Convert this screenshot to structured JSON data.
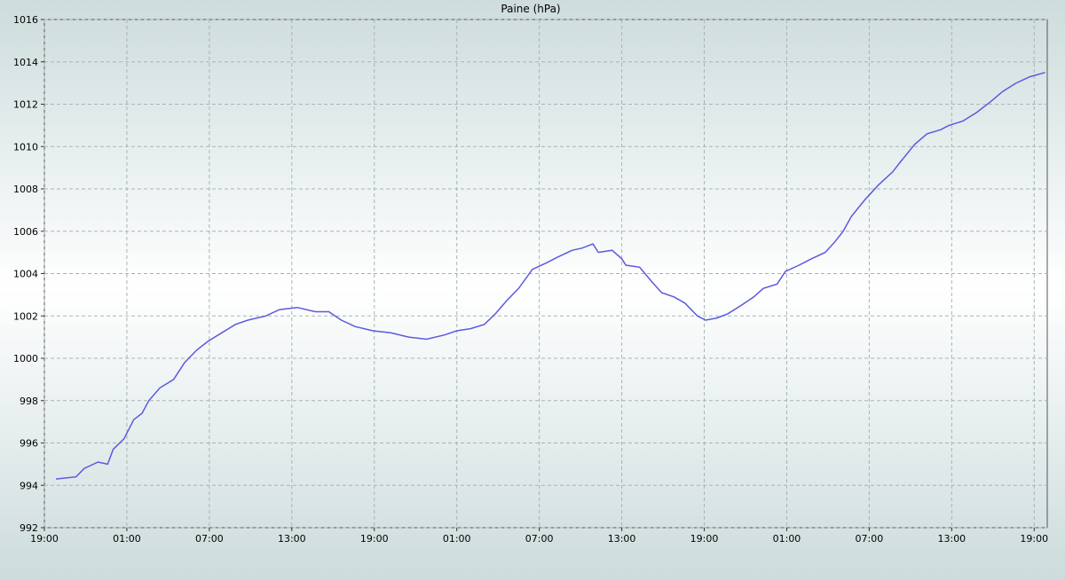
{
  "chart_data": {
    "type": "line",
    "title": "Paine (hPa)",
    "x": [
      0.84,
      2.3,
      2.9,
      3.9,
      4.6,
      5.0,
      5.8,
      6.5,
      7.1,
      7.6,
      8.4,
      9.4,
      10.2,
      11.1,
      11.9,
      12.9,
      13.9,
      14.8,
      16.1,
      17.1,
      18.4,
      19.7,
      20.7,
      21.6,
      22.6,
      23.9,
      25.2,
      26.5,
      27.8,
      29.1,
      30.0,
      31.0,
      32.0,
      32.8,
      33.6,
      34.5,
      35.5,
      36.5,
      37.4,
      38.4,
      39.1,
      39.9,
      40.3,
      41.3,
      42.0,
      42.3,
      43.3,
      44.2,
      44.9,
      45.8,
      46.6,
      47.5,
      48.1,
      48.9,
      49.7,
      50.7,
      51.6,
      52.3,
      53.3,
      53.9,
      54.9,
      55.8,
      56.8,
      57.5,
      58.1,
      58.7,
      59.7,
      60.7,
      61.7,
      62.3,
      63.3,
      64.2,
      65.2,
      65.8,
      66.8,
      67.8,
      68.8,
      69.7,
      70.7,
      71.7,
      72.8
    ],
    "series": [
      {
        "color": "#5a5ade",
        "values": [
          994.3,
          994.4,
          994.8,
          995.1,
          995.0,
          995.7,
          996.2,
          997.1,
          997.4,
          998.0,
          998.6,
          999.0,
          999.8,
          1000.4,
          1000.8,
          1001.2,
          1001.6,
          1001.8,
          1002.0,
          1002.3,
          1002.4,
          1002.2,
          1002.2,
          1001.8,
          1001.5,
          1001.3,
          1001.2,
          1001.0,
          1000.9,
          1001.1,
          1001.3,
          1001.4,
          1001.6,
          1002.1,
          1002.7,
          1003.3,
          1004.2,
          1004.5,
          1004.8,
          1005.1,
          1005.2,
          1005.4,
          1005.0,
          1005.1,
          1004.7,
          1004.4,
          1004.3,
          1003.6,
          1003.1,
          1002.9,
          1002.6,
          1002.0,
          1001.8,
          1001.9,
          1002.1,
          1002.5,
          1002.9,
          1003.3,
          1003.5,
          1004.1,
          1004.4,
          1004.7,
          1005.0,
          1005.5,
          1006.0,
          1006.7,
          1007.5,
          1008.2,
          1008.8,
          1009.3,
          1010.1,
          1010.6,
          1010.8,
          1011.0,
          1011.2,
          1011.6,
          1012.1,
          1012.6,
          1013.0,
          1013.3,
          1013.5
        ]
      }
    ],
    "xlim": [
      0,
      72.95
    ],
    "xticks": [
      {
        "value": 0,
        "label": "19:00"
      },
      {
        "value": 6,
        "label": "01:00"
      },
      {
        "value": 12,
        "label": "07:00"
      },
      {
        "value": 18,
        "label": "13:00"
      },
      {
        "value": 24,
        "label": "19:00"
      },
      {
        "value": 30,
        "label": "01:00"
      },
      {
        "value": 36,
        "label": "07:00"
      },
      {
        "value": 42,
        "label": "13:00"
      },
      {
        "value": 48,
        "label": "19:00"
      },
      {
        "value": 54,
        "label": "01:00"
      },
      {
        "value": 60,
        "label": "07:00"
      },
      {
        "value": 66,
        "label": "13:00"
      },
      {
        "value": 72,
        "label": "19:00"
      }
    ],
    "ylim": [
      992,
      1016
    ],
    "yticks": [
      992,
      994,
      996,
      998,
      1000,
      1002,
      1004,
      1006,
      1008,
      1010,
      1012,
      1014,
      1016
    ],
    "grid": true
  }
}
